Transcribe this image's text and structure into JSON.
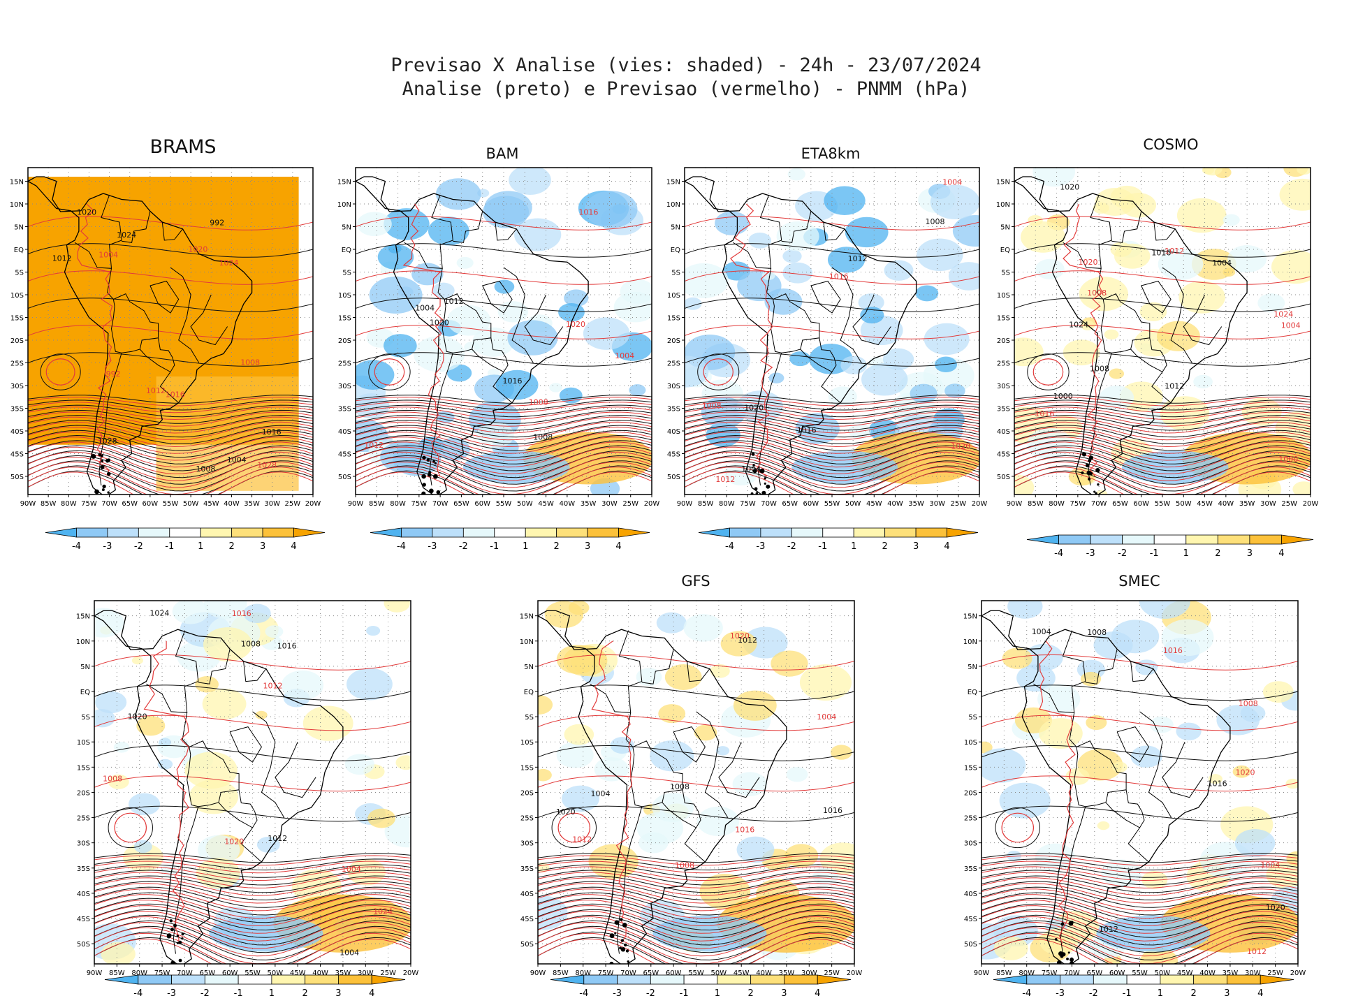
{
  "title": {
    "line1": "Previsao X Analise (vies: shaded) - 24h - 23/07/2024",
    "line2": "Analise (preto) e Previsao (vermelho) - PNMM (hPa)"
  },
  "axes": {
    "lon_labels": [
      "90W",
      "85W",
      "80W",
      "75W",
      "70W",
      "65W",
      "60W",
      "55W",
      "50W",
      "45W",
      "40W",
      "35W",
      "30W",
      "25W",
      "20W"
    ],
    "lat_labels": [
      "15N",
      "10N",
      "5N",
      "EQ",
      "5S",
      "10S",
      "15S",
      "20S",
      "25S",
      "30S",
      "35S",
      "40S",
      "45S",
      "50S"
    ]
  },
  "colorbar": {
    "labels": [
      "-4",
      "-3",
      "-2",
      "-1",
      "1",
      "2",
      "3",
      "4"
    ],
    "colors": [
      "#4fb3f0",
      "#8fc9f5",
      "#bde0fa",
      "#e6f8fb",
      "#ffffff",
      "#fff6b0",
      "#fde07a",
      "#fcc13a",
      "#f7a300"
    ]
  },
  "colors": {
    "analysis_contour": "#111111",
    "forecast_contour": "#e23b3b",
    "positive_bias": "#f7a300",
    "negative_bias": "#4fb3f0"
  },
  "panels": [
    {
      "id": "brams",
      "name": "BRAMS",
      "contour_labels": [
        "1008",
        "1012",
        "1016",
        "1020",
        "1024",
        "1028",
        "1004",
        "992"
      ],
      "fill": "orange",
      "cover": 0.85
    },
    {
      "id": "bam",
      "name": "BAM",
      "contour_labels": [
        "1012",
        "1008",
        "1016",
        "1020",
        "1004"
      ],
      "fill": "blue",
      "cover": 0.55
    },
    {
      "id": "eta",
      "name": "ETA8km",
      "contour_labels": [
        "1016",
        "1012",
        "1008",
        "1020",
        "1004"
      ],
      "fill": "blue",
      "cover": 0.45
    },
    {
      "id": "cosmo",
      "name": "COSMO",
      "contour_labels": [
        "1016",
        "1012",
        "1008",
        "1020",
        "1024",
        "1004",
        "1000"
      ],
      "fill": "yellow",
      "cover": 0.5
    },
    {
      "id": "p5",
      "name": "",
      "contour_labels": [
        "1012",
        "1008",
        "1016",
        "1020",
        "1024",
        "1004"
      ],
      "fill": "mixed",
      "cover": 0.4
    },
    {
      "id": "gfs",
      "name": "GFS",
      "contour_labels": [
        "1012",
        "1008",
        "1016",
        "1020",
        "1004"
      ],
      "fill": "mixed",
      "cover": 0.35
    },
    {
      "id": "smec",
      "name": "SMEC",
      "contour_labels": [
        "1016",
        "1012",
        "1008",
        "1020",
        "1004"
      ],
      "fill": "mixed",
      "cover": 0.35
    }
  ]
}
